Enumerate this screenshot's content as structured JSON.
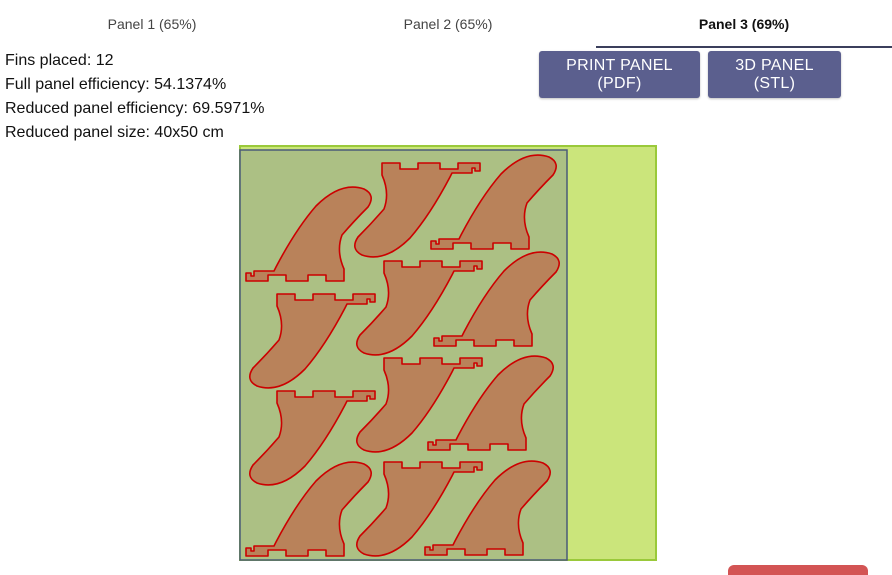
{
  "tabs": [
    {
      "label": "Panel 1 (65%)",
      "active": false
    },
    {
      "label": "Panel 2 (65%)",
      "active": false
    },
    {
      "label": "Panel 3 (69%)",
      "active": true
    }
  ],
  "stats": {
    "fins_placed": "Fins placed: 12",
    "full_efficiency": "Full panel efficiency: 54.1374%",
    "reduced_efficiency": "Reduced panel efficiency: 69.5971%",
    "reduced_size": "Reduced panel size: 40x50 cm"
  },
  "buttons": {
    "print_pdf": "PRINT PANEL (PDF)",
    "panel_stl": "3D PANEL (STL)"
  },
  "colors": {
    "full_panel": "#cbe57b",
    "reduced_panel": "#acc084",
    "fin_fill": "#b9825a",
    "fin_stroke": "#cc0000",
    "button": "#5b5f8e"
  },
  "panel": {
    "fin_count": 12
  }
}
